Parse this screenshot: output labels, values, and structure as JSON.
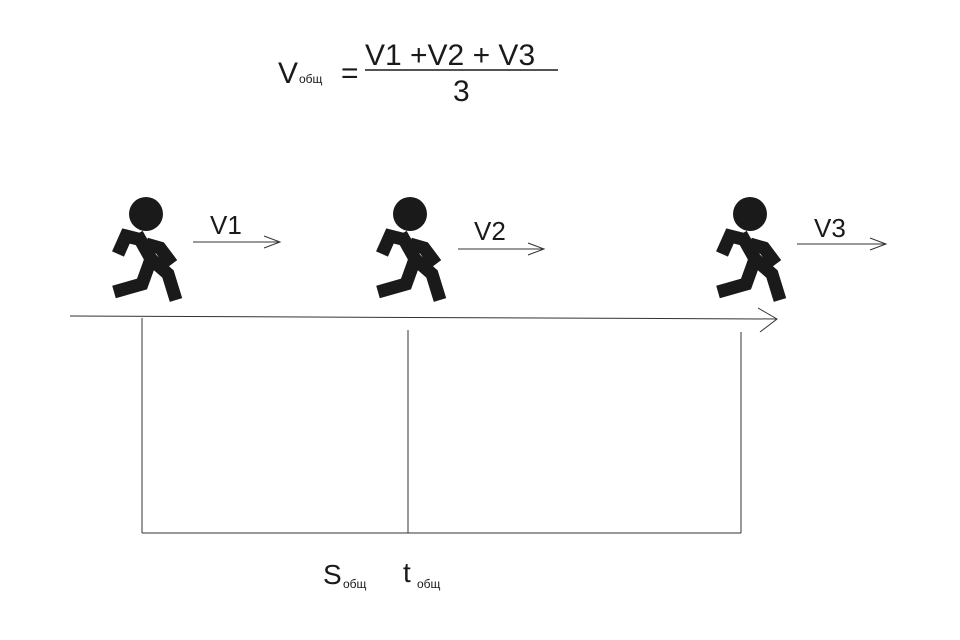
{
  "formula": {
    "lhs": "V",
    "lhs_sub": "общ",
    "equals": "=",
    "numerator": "V1 +V2 + V3",
    "denominator": "3"
  },
  "runners": [
    {
      "name": "runner-1",
      "velocity_label": "V1"
    },
    {
      "name": "runner-2",
      "velocity_label": "V2"
    },
    {
      "name": "runner-3",
      "velocity_label": "V3"
    }
  ],
  "totals": {
    "distance": "S",
    "distance_sub": "общ",
    "time": "t",
    "time_sub": "общ"
  },
  "colors": {
    "ink": "#1a1a1a",
    "line": "#333333",
    "background": "#ffffff"
  },
  "icons": {
    "runner": "running-person-icon"
  }
}
